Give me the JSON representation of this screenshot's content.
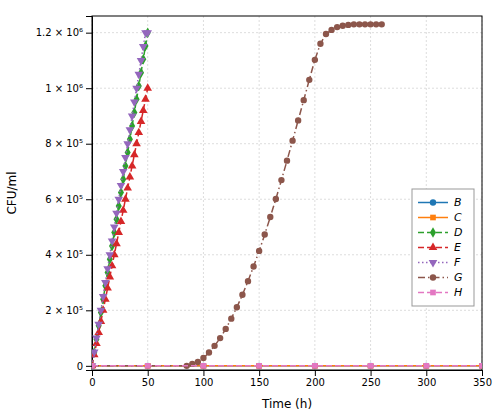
{
  "chart_data": {
    "type": "line",
    "x_label": "Time (h)",
    "y_label": "CFU/ml",
    "xlim": [
      0,
      350
    ],
    "ylim": [
      -15000,
      1260000
    ],
    "xticks": [
      0,
      50,
      100,
      150,
      200,
      250,
      300,
      350
    ],
    "yticks": [
      0,
      {
        "value": 200000,
        "label": "2 × 10⁵"
      },
      {
        "value": 400000,
        "label": "4 × 10⁵"
      },
      {
        "value": 600000,
        "label": "6 × 10⁵"
      },
      {
        "value": 800000,
        "label": "8 × 10⁵"
      },
      {
        "value": 1000000,
        "label": "1 × 10⁶"
      },
      {
        "value": 1200000,
        "label": "1.2 × 10⁶"
      }
    ],
    "grid": true,
    "legend": "lower right",
    "series": [
      {
        "name": "B",
        "marker": "circle",
        "line_style": "solid",
        "x": [
          0,
          50,
          100,
          150,
          200,
          250,
          300,
          350
        ],
        "values": [
          0,
          0,
          0,
          0,
          0,
          0,
          0,
          0
        ]
      },
      {
        "name": "C",
        "marker": "square",
        "line_style": "solid",
        "x": [
          0,
          50,
          100,
          150,
          200,
          250,
          300,
          350
        ],
        "values": [
          0,
          0,
          0,
          0,
          0,
          0,
          0,
          0
        ]
      },
      {
        "name": "D",
        "marker": "diamond",
        "line_style": "dashed",
        "x": [
          0,
          2,
          4,
          6,
          8,
          10,
          12,
          14,
          16,
          18,
          20,
          22,
          24,
          26,
          28,
          30,
          32,
          34,
          36,
          38,
          40,
          42,
          44,
          46,
          48,
          50
        ],
        "values": [
          0,
          48000,
          96000,
          144000,
          192000,
          240000,
          288000,
          336000,
          384000,
          432000,
          480000,
          528000,
          576000,
          624000,
          672000,
          720000,
          768000,
          816000,
          864000,
          912000,
          960000,
          1008000,
          1056000,
          1104000,
          1152000,
          1200000
        ]
      },
      {
        "name": "E",
        "marker": "triangle-up",
        "line_style": "dashed",
        "x": [
          0,
          2,
          4,
          6,
          8,
          10,
          12,
          14,
          16,
          18,
          20,
          22,
          24,
          26,
          28,
          30,
          32,
          34,
          36,
          38,
          40,
          42,
          44,
          46,
          48,
          50
        ],
        "values": [
          0,
          40000,
          80000,
          120000,
          160000,
          200000,
          240000,
          280000,
          320000,
          360000,
          400000,
          440000,
          480000,
          520000,
          560000,
          600000,
          640000,
          680000,
          720000,
          760000,
          800000,
          840000,
          880000,
          920000,
          960000,
          1000000
        ]
      },
      {
        "name": "F",
        "marker": "triangle-down",
        "line_style": "dotted",
        "x": [
          0,
          2,
          4,
          6,
          8,
          10,
          12,
          14,
          16,
          18,
          20,
          22,
          24,
          26,
          28,
          30,
          32,
          34,
          36,
          38,
          40,
          42,
          44,
          46,
          48,
          50
        ],
        "values": [
          0,
          50000,
          100000,
          150000,
          200000,
          250000,
          300000,
          350000,
          400000,
          450000,
          500000,
          550000,
          600000,
          650000,
          700000,
          750000,
          800000,
          850000,
          900000,
          950000,
          1000000,
          1050000,
          1100000,
          1150000,
          1200000,
          1200000
        ]
      },
      {
        "name": "G",
        "marker": "circle",
        "line_style": "dashdot",
        "x": [
          0,
          85,
          90,
          95,
          100,
          105,
          110,
          115,
          120,
          125,
          130,
          135,
          140,
          145,
          150,
          155,
          160,
          165,
          170,
          175,
          180,
          185,
          190,
          195,
          200,
          205,
          210,
          215,
          220,
          225,
          230,
          235,
          240,
          245,
          250,
          255,
          260
        ],
        "values": [
          0,
          0,
          7000,
          14000,
          28000,
          48000,
          72000,
          100000,
          133000,
          170000,
          211000,
          256000,
          305000,
          358000,
          414000,
          473000,
          536000,
          601000,
          669000,
          739000,
          811000,
          884000,
          957000,
          1030000,
          1102000,
          1160000,
          1195000,
          1210000,
          1220000,
          1225000,
          1228000,
          1230000,
          1230000,
          1230000,
          1230000,
          1230000,
          1230000
        ]
      },
      {
        "name": "H",
        "marker": "square",
        "line_style": "dashed",
        "x": [
          0,
          50,
          100,
          150,
          200,
          250,
          300,
          350
        ],
        "values": [
          0,
          0,
          0,
          0,
          0,
          0,
          0,
          0
        ]
      }
    ]
  }
}
